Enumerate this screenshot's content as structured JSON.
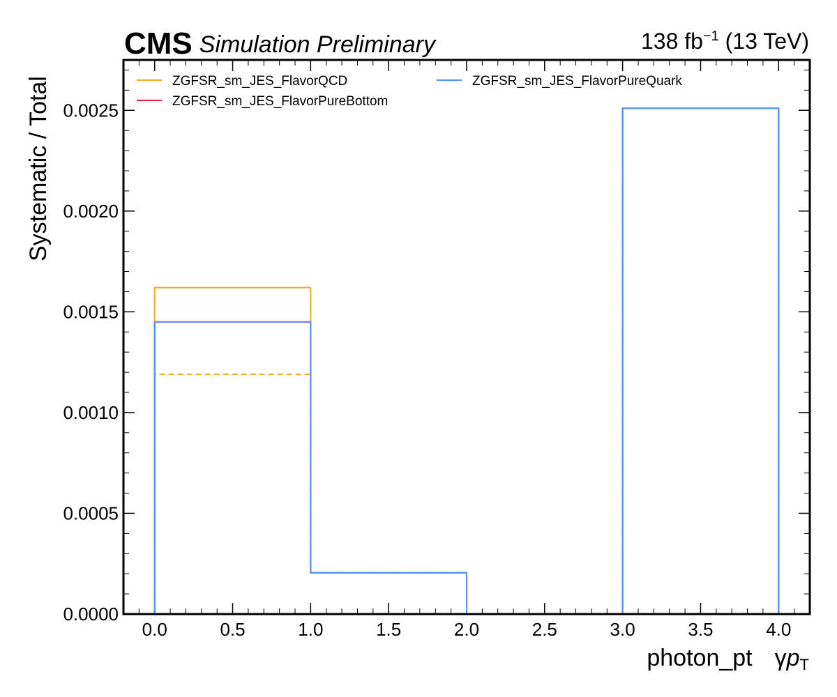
{
  "header": {
    "experiment": "CMS",
    "subtitle": "Simulation Preliminary",
    "lumi_value": "138 fb",
    "lumi_exponent": "−1",
    "energy": "(13 TeV)"
  },
  "chart_data": {
    "type": "line",
    "draw": "step-histogram",
    "xlabel": "photon_pt",
    "xlabel_symbol_prefix": "γ",
    "xlabel_symbol_main": "p",
    "xlabel_symbol_sub": "T",
    "ylabel": "Systematic / Total",
    "xlim": [
      -0.2,
      4.2
    ],
    "ylim": [
      0,
      0.00275
    ],
    "x_ticks": [
      0.0,
      0.5,
      1.0,
      1.5,
      2.0,
      2.5,
      3.0,
      3.5,
      4.0
    ],
    "x_tick_labels": [
      "0.0",
      "0.5",
      "1.0",
      "1.5",
      "2.0",
      "2.5",
      "3.0",
      "3.5",
      "4.0"
    ],
    "y_ticks": [
      0,
      0.0005,
      0.001,
      0.0015,
      0.002,
      0.0025
    ],
    "y_tick_labels": [
      "0.0000",
      "0.0005",
      "0.0010",
      "0.0015",
      "0.0020",
      "0.0025"
    ],
    "grid": false,
    "legend_position": "top-left",
    "legend_columns": 2,
    "bin_edges": [
      0,
      1,
      2,
      3,
      4
    ],
    "series": [
      {
        "name": "ZGFSR_sm_JES_FlavorQCD",
        "color": "#f5a623",
        "style": "solid",
        "values": [
          0.00162,
          0.000205,
          0,
          0.00251
        ]
      },
      {
        "name": "ZGFSR_sm_JES_FlavorPureBottom",
        "color": "#e42536",
        "style": "solid",
        "values": [
          0.00145,
          0.000205,
          0,
          0.00251
        ]
      },
      {
        "name": "ZGFSR_sm_JES_FlavorPureQuark",
        "color": "#5790fc",
        "style": "solid",
        "values": [
          0.00145,
          0.000205,
          0,
          0.00251
        ]
      },
      {
        "color": "#f5a623",
        "style": "dashed",
        "values": [
          0.00119,
          0.000205,
          0,
          0.00251
        ]
      }
    ]
  }
}
